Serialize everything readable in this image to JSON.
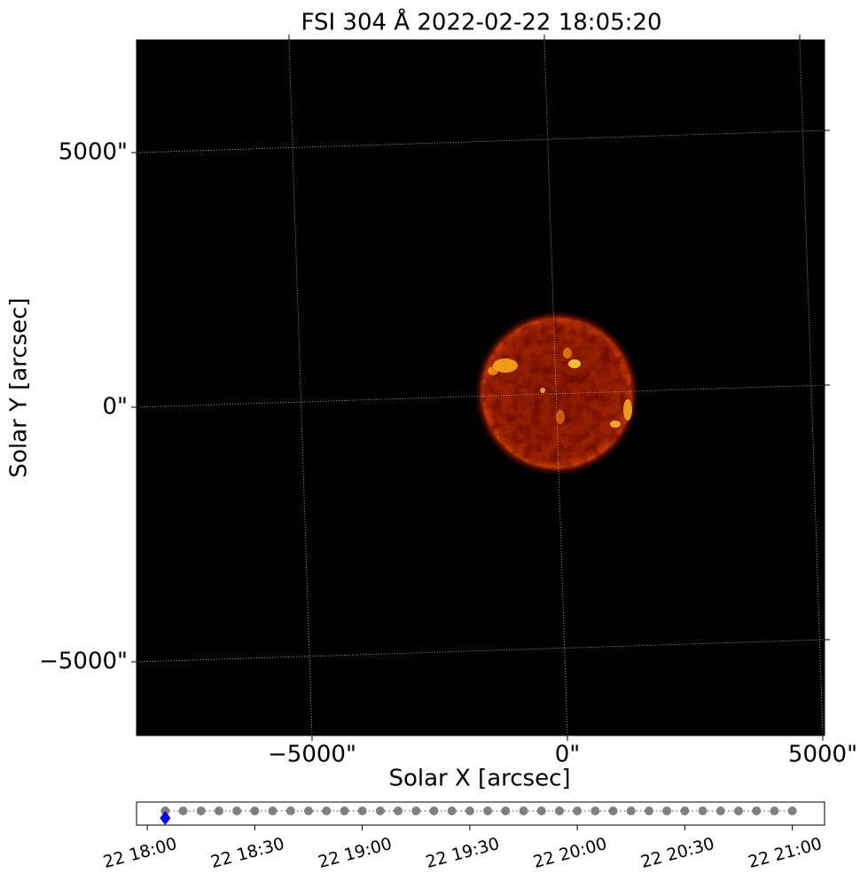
{
  "chart_data": [
    {
      "type": "image",
      "title": "FSI 304 Å 2022-02-22 18:05:20",
      "xlabel": "Solar X [arcsec]",
      "ylabel": "Solar Y [arcsec]",
      "xlim": [
        -8437,
        5035
      ],
      "ylim": [
        -6446,
        7213
      ],
      "xticks": [
        {
          "value": -5000,
          "label": "−5000\""
        },
        {
          "value": 0,
          "label": "0\""
        },
        {
          "value": 5000,
          "label": "5000\""
        }
      ],
      "yticks": [
        {
          "value": -5000,
          "label": "−5000\""
        },
        {
          "value": 0,
          "label": "0\""
        },
        {
          "value": 5000,
          "label": "5000\""
        }
      ],
      "grid": true
    },
    {
      "type": "timeline",
      "x": [
        "18:05",
        "18:10",
        "18:15",
        "18:20",
        "18:25",
        "18:30",
        "18:35",
        "18:40",
        "18:45",
        "18:50",
        "18:55",
        "19:00",
        "19:05",
        "19:10",
        "19:15",
        "19:20",
        "19:25",
        "19:30",
        "19:35",
        "19:40",
        "19:45",
        "19:50",
        "19:55",
        "20:00",
        "20:05",
        "20:10",
        "20:15",
        "20:20",
        "20:25",
        "20:30",
        "20:35",
        "20:40",
        "20:45",
        "20:50",
        "20:55",
        "21:00"
      ],
      "current": "18:05",
      "color": "#808080",
      "current_color": "#0000ff",
      "xlim": [
        "17:57",
        "21:09"
      ],
      "xticks": [
        {
          "value": "18:00",
          "label": "22 18:00"
        },
        {
          "value": "18:30",
          "label": "22 18:30"
        },
        {
          "value": "19:00",
          "label": "22 19:00"
        },
        {
          "value": "19:30",
          "label": "22 19:30"
        },
        {
          "value": "20:00",
          "label": "22 20:00"
        },
        {
          "value": "20:30",
          "label": "22 20:30"
        },
        {
          "value": "21:00",
          "label": "22 21:00"
        }
      ]
    }
  ]
}
